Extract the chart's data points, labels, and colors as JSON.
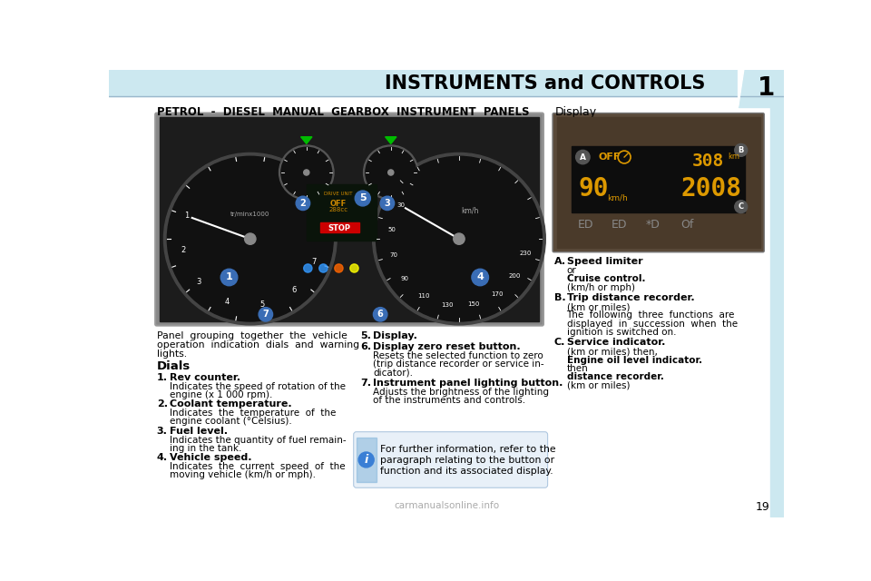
{
  "page_bg": "#ffffff",
  "header_bg": "#cce8f0",
  "header_text": "INSTRUMENTS and CONTROLS",
  "header_text_color": "#000000",
  "header_font_size": 15,
  "page_number": "1",
  "section_title": "PETROL  -  DIESEL  MANUAL  GEARBOX  INSTRUMENT  PANELS",
  "section_title_color": "#000000",
  "section_title_font_size": 8.5,
  "display_title": "Display",
  "display_title_font_size": 9,
  "left_text_block": [
    "Panel  grouping  together  the  vehicle",
    "operation  indication  dials  and  warning",
    "lights."
  ],
  "dials_heading": "Dials",
  "dials_items": [
    {
      "num": "1.",
      "bold": "Rev counter.",
      "text": "Indicates the speed of rotation of the\nengine (x 1 000 rpm)."
    },
    {
      "num": "2.",
      "bold": "Coolant temperature.",
      "text": "Indicates  the  temperature  of  the\nengine coolant (°Celsius)."
    },
    {
      "num": "3.",
      "bold": "Fuel level.",
      "text": "Indicates the quantity of fuel remain-\ning in the tank."
    },
    {
      "num": "4.",
      "bold": "Vehicle speed.",
      "text": "Indicates  the  current  speed  of  the\nmoving vehicle (km/h or mph)."
    }
  ],
  "right_items": [
    {
      "num": "5.",
      "bold": "Display.",
      "text": ""
    },
    {
      "num": "6.",
      "bold": "Display zero reset button.",
      "text": "Resets the selected function to zero\n(trip distance recorder or service in-\ndicator)."
    },
    {
      "num": "7.",
      "bold": "Instrument panel lighting button.",
      "text": "Adjusts the brightness of the lighting\nof the instruments and controls."
    }
  ],
  "info_box_bg": "#e8f0f8",
  "info_box_border": "#b0c8e0",
  "info_box_text": "For further information, refer to the\nparagraph relating to the button or\nfunction and its associated display.",
  "info_i_bg": "#3a7fd5",
  "display_labels": [
    {
      "letter": "A.",
      "bold": "Speed limiter",
      "normal_lines": [
        "or",
        "Cruise control.",
        "(km/h or mph)"
      ],
      "bold_lines": [
        false,
        true,
        false
      ]
    },
    {
      "letter": "B.",
      "bold": "Trip distance recorder.",
      "normal_lines": [
        "(km or miles)",
        "The  following  three  functions  are",
        "displayed  in  succession  when  the",
        "ignition is switched on."
      ],
      "bold_lines": [
        false,
        false,
        false,
        false
      ]
    },
    {
      "letter": "C.",
      "bold": "Service indicator.",
      "normal_lines": [
        "(km or miles) then,",
        "Engine oil level indicator.",
        "then",
        "distance recorder.",
        "(km or miles)"
      ],
      "bold_lines": [
        false,
        true,
        false,
        true,
        false
      ]
    }
  ],
  "sidebar_right_bg": "#cce8f0",
  "bottom_watermark": "carmanualsonline.info",
  "page_num_bottom": "19"
}
